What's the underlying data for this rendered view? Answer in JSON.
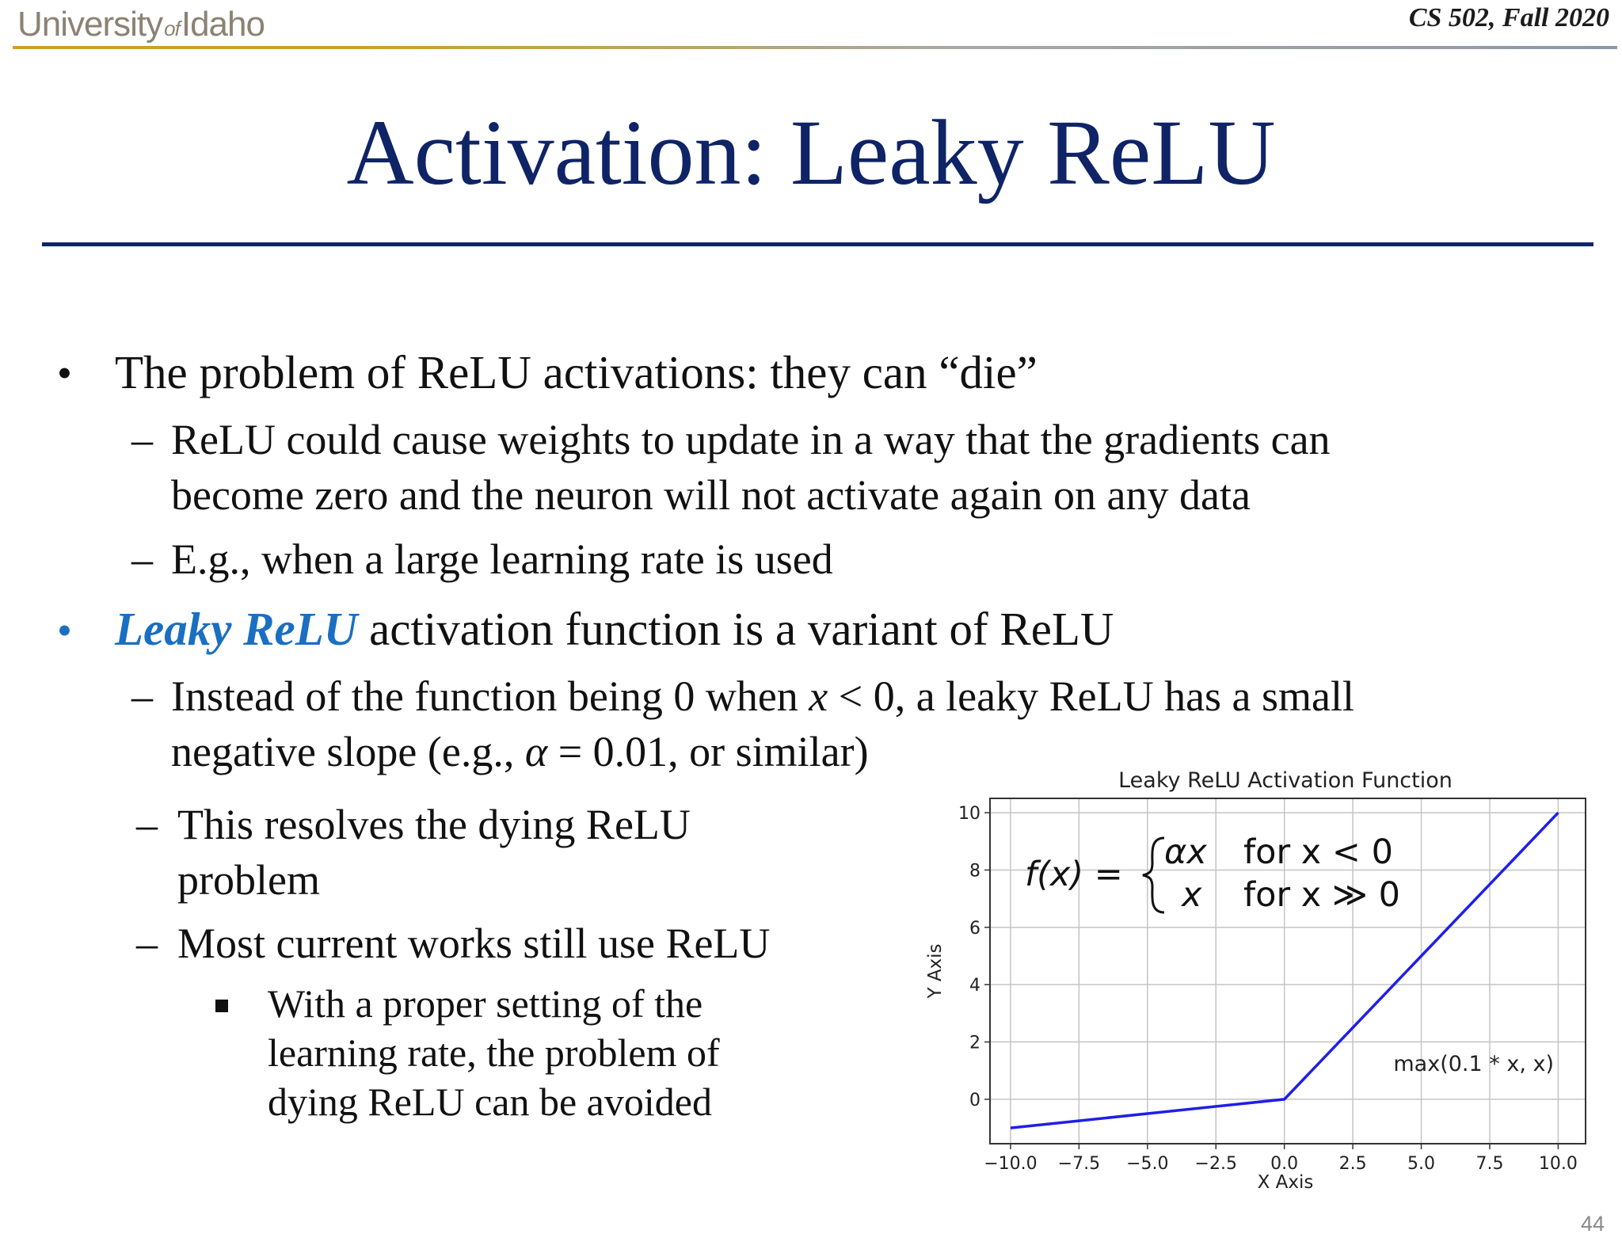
{
  "header": {
    "logo_university": "University",
    "logo_of": "of",
    "logo_idaho": "Idaho",
    "course": "CS 502, Fall 2020"
  },
  "slide": {
    "title": "Activation: Leaky ReLU",
    "page_number": "44"
  },
  "bullets": {
    "b1": {
      "marker": "•",
      "text": "The problem of ReLU activations: they can “die”"
    },
    "b1_sub1": {
      "dash": "–",
      "line1": "ReLU could cause weights to update  in a way that the gradients can",
      "line2": "become zero and the neuron will not activate again on any data"
    },
    "b1_sub2": {
      "dash": "–",
      "text": "E.g., when a large learning rate is used"
    },
    "b2": {
      "marker": "•",
      "keyword": "Leaky ReLU",
      "rest": " activation function is a variant of ReLU"
    },
    "b2_sub1": {
      "dash": "–",
      "part1": "Instead of the function being 0 when ",
      "var_x": "x",
      "part2": " < 0, a leaky ReLU has a small",
      "line2_part1": "negative slope (e.g., ",
      "alpha": "α",
      "line2_part2": " = 0.01, or similar)"
    },
    "b2_sub2": {
      "dash": "–",
      "line1": "This resolves the dying ReLU",
      "line2": "problem"
    },
    "b2_sub3": {
      "dash": "–",
      "text": "Most current works still use ReLU"
    },
    "b2_sub3_sub": {
      "line1": "With a proper setting of the",
      "line2": "learning rate, the problem of",
      "line3": "dying ReLU can be avoided"
    }
  },
  "chart_data": {
    "type": "line",
    "title": "Leaky ReLU Activation Function",
    "xlabel": "X Axis",
    "ylabel": "Y Axis",
    "xlim": [
      -10.75,
      11.0
    ],
    "ylim": [
      -1.55,
      10.5
    ],
    "xticks": [
      -10.0,
      -7.5,
      -5.0,
      -2.5,
      0.0,
      2.5,
      5.0,
      7.5,
      10.0
    ],
    "xtick_labels": [
      "−10.0",
      "−7.5",
      "−5.0",
      "−2.5",
      "0.0",
      "2.5",
      "5.0",
      "7.5",
      "10.0"
    ],
    "yticks": [
      0,
      2,
      4,
      6,
      8,
      10
    ],
    "ytick_labels": [
      "0",
      "2",
      "4",
      "6",
      "8",
      "10"
    ],
    "grid": true,
    "series": [
      {
        "x": [
          -10.0,
          0.0,
          10.0
        ],
        "y": [
          -1.0,
          0.0,
          10.0
        ],
        "color": "#1f1fe8"
      }
    ],
    "annotation_text": "max(0.1 * x, x)",
    "formula": {
      "lhs": "f(x) =",
      "case1_value": "αx",
      "case1_condition": "for x < 0",
      "case2_value": "x",
      "case2_condition": "for x ≫ 0"
    }
  }
}
